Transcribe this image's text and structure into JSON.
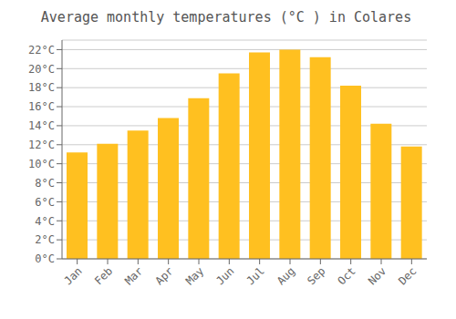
{
  "chart_data": {
    "type": "bar",
    "title": "Average monthly temperatures (°C ) in Colares",
    "categories": [
      "Jan",
      "Feb",
      "Mar",
      "Apr",
      "May",
      "Jun",
      "Jul",
      "Aug",
      "Sep",
      "Oct",
      "Nov",
      "Dec"
    ],
    "values": [
      11.2,
      12.1,
      13.5,
      14.8,
      16.9,
      19.5,
      21.7,
      22.0,
      21.2,
      18.2,
      14.2,
      11.8
    ],
    "color": "#FFC020",
    "ylim": [
      0,
      23
    ],
    "yticks": [
      {
        "value": 0,
        "label": "0°C"
      },
      {
        "value": 2,
        "label": "2°C"
      },
      {
        "value": 4,
        "label": "4°C"
      },
      {
        "value": 6,
        "label": "6°C"
      },
      {
        "value": 8,
        "label": "8°C"
      },
      {
        "value": 10,
        "label": "10°C"
      },
      {
        "value": 12,
        "label": "12°C"
      },
      {
        "value": 14,
        "label": "14°C"
      },
      {
        "value": 16,
        "label": "16°C"
      },
      {
        "value": 18,
        "label": "18°C"
      },
      {
        "value": 20,
        "label": "20°C"
      },
      {
        "value": 22,
        "label": "22°C"
      }
    ],
    "grid": true
  }
}
